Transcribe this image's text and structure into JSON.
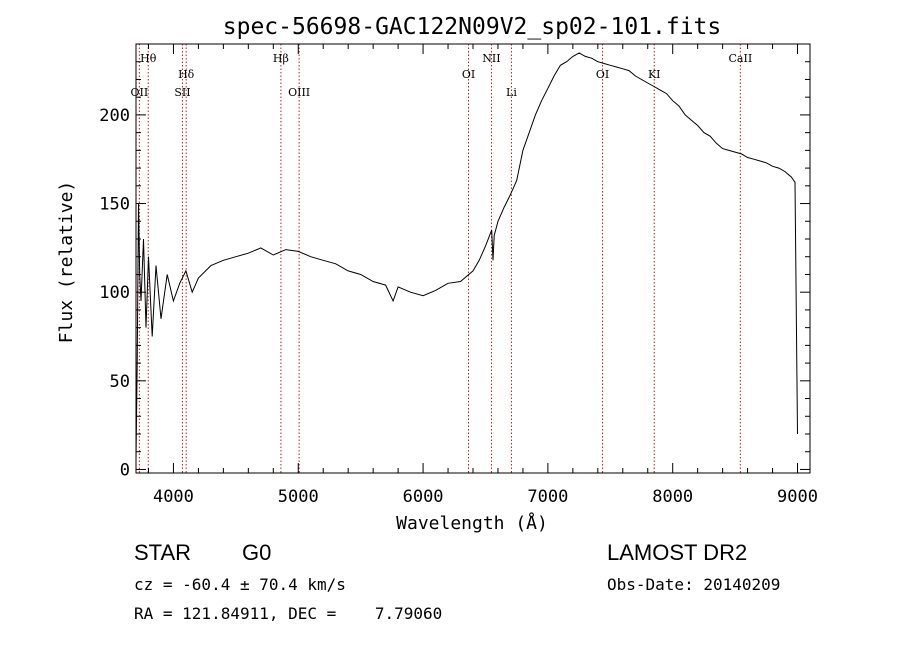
{
  "chart_data": {
    "type": "line",
    "title": "spec-56698-GAC122N09V2_sp02-101.fits",
    "xlabel": "Wavelength (Å)",
    "ylabel": "Flux (relative)",
    "xlim": [
      3700,
      9100
    ],
    "ylim": [
      -2,
      240
    ],
    "xticks": [
      4000,
      5000,
      6000,
      7000,
      8000,
      9000
    ],
    "yticks": [
      0,
      50,
      100,
      150,
      200
    ],
    "grid": false,
    "series": [
      {
        "x": [
          3700,
          3710,
          3720,
          3730,
          3740,
          3760,
          3780,
          3800,
          3830,
          3860,
          3900,
          3950,
          4000,
          4050,
          4100,
          4150,
          4200,
          4300,
          4400,
          4500,
          4600,
          4700,
          4800,
          4900,
          5000,
          5100,
          5200,
          5300,
          5400,
          5500,
          5600,
          5700,
          5760,
          5800,
          5900,
          6000,
          6100,
          6200,
          6300,
          6400,
          6450,
          6500,
          6550,
          6560,
          6570,
          6600,
          6650,
          6700,
          6750,
          6800,
          6850,
          6900,
          6950,
          7000,
          7050,
          7100,
          7150,
          7200,
          7250,
          7300,
          7350,
          7400,
          7450,
          7500,
          7550,
          7600,
          7650,
          7700,
          7750,
          7800,
          7850,
          7900,
          7950,
          8000,
          8050,
          8100,
          8150,
          8200,
          8250,
          8300,
          8350,
          8400,
          8450,
          8500,
          8550,
          8600,
          8650,
          8700,
          8750,
          8800,
          8850,
          8900,
          8950,
          8980,
          9000
        ],
        "y": [
          5,
          60,
          150,
          110,
          95,
          130,
          80,
          120,
          75,
          115,
          85,
          110,
          95,
          105,
          112,
          100,
          108,
          115,
          118,
          120,
          122,
          125,
          121,
          124,
          123,
          120,
          118,
          116,
          112,
          110,
          106,
          104,
          95,
          103,
          100,
          98,
          101,
          105,
          106,
          112,
          118,
          126,
          135,
          118,
          132,
          140,
          148,
          155,
          163,
          180,
          190,
          200,
          208,
          215,
          222,
          228,
          230,
          233,
          235,
          233,
          232,
          230,
          229,
          228,
          227,
          226,
          225,
          222,
          220,
          218,
          216,
          214,
          212,
          208,
          205,
          200,
          197,
          194,
          190,
          188,
          184,
          181,
          180,
          179,
          178,
          176,
          175,
          174,
          173,
          171,
          170,
          168,
          165,
          162,
          20
        ]
      }
    ],
    "annotations": [
      {
        "label": "Hθ",
        "x": 3798,
        "row": "top"
      },
      {
        "label": "OII",
        "x": 3727,
        "row": "low"
      },
      {
        "label": "Hδ",
        "x": 4102,
        "row": "mid"
      },
      {
        "label": "SII",
        "x": 4072,
        "row": "low"
      },
      {
        "label": "Hβ",
        "x": 4861,
        "row": "top"
      },
      {
        "label": "OIII",
        "x": 5007,
        "row": "low"
      },
      {
        "label": "OI",
        "x": 6364,
        "row": "mid2"
      },
      {
        "label": "NII",
        "x": 6548,
        "row": "top"
      },
      {
        "label": "Li",
        "x": 6708,
        "row": "low"
      },
      {
        "label": "OI",
        "x": 7438,
        "row": "mid2"
      },
      {
        "label": "KI",
        "x": 7852,
        "row": "mid2"
      },
      {
        "label": "CaII",
        "x": 8542,
        "row": "top"
      }
    ]
  },
  "info": {
    "object_class": "STAR",
    "subclass": "G0",
    "survey": "LAMOST DR2",
    "cz": "cz = -60.4 ± 70.4 km/s",
    "obs_date": "Obs-Date: 20140209",
    "radec": "RA = 121.84911, DEC =    7.79060"
  },
  "colors": {
    "line": "#000000",
    "marker": "#b22222"
  }
}
